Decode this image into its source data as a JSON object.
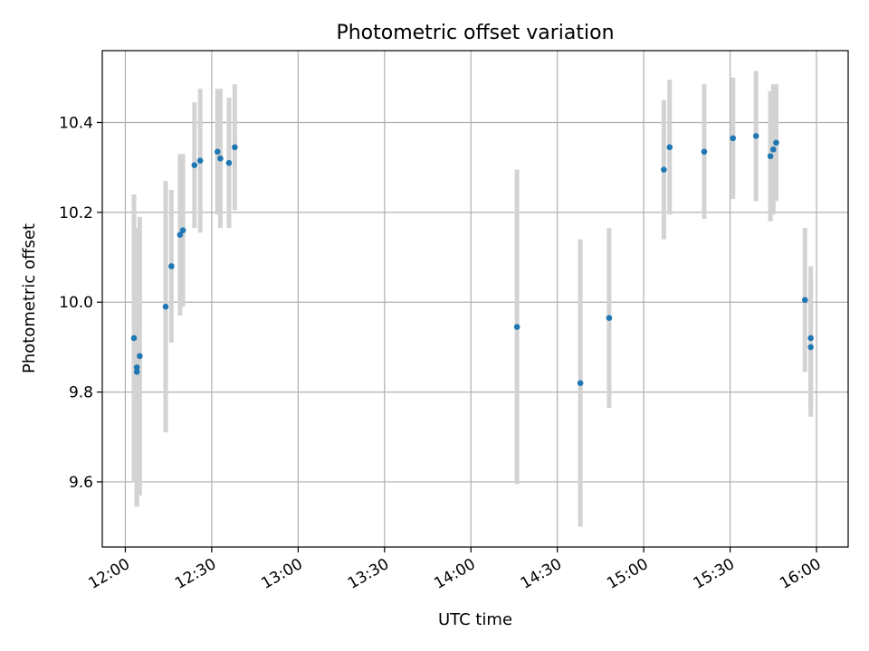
{
  "chart_data": {
    "type": "scatter",
    "title": "Photometric offset variation",
    "xlabel": "UTC time",
    "ylabel": "Photometric offset",
    "x_format": "HH:MM",
    "xlim": [
      "11:52",
      "16:11"
    ],
    "ylim": [
      9.455,
      10.56
    ],
    "grid": true,
    "x_ticks": [
      "12:00",
      "12:30",
      "13:00",
      "13:30",
      "14:00",
      "14:30",
      "15:00",
      "15:30",
      "16:00"
    ],
    "y_ticks": [
      9.6,
      9.8,
      10.0,
      10.2,
      10.4
    ],
    "y_tick_labels": [
      "9.6",
      "9.8",
      "10.0",
      "10.2",
      "10.4"
    ],
    "colors": {
      "point": "#1f77b4",
      "errorbar": "#d3d3d3"
    },
    "points": [
      {
        "x": "12:03",
        "y": 9.92,
        "err": 0.32
      },
      {
        "x": "12:04",
        "y": 9.855,
        "err": 0.31
      },
      {
        "x": "12:04",
        "y": 9.845,
        "err": 0.3
      },
      {
        "x": "12:05",
        "y": 9.88,
        "err": 0.31
      },
      {
        "x": "12:14",
        "y": 9.99,
        "err": 0.28
      },
      {
        "x": "12:16",
        "y": 10.08,
        "err": 0.17
      },
      {
        "x": "12:19",
        "y": 10.15,
        "err": 0.18
      },
      {
        "x": "12:20",
        "y": 10.16,
        "err": 0.17
      },
      {
        "x": "12:24",
        "y": 10.305,
        "err": 0.14
      },
      {
        "x": "12:26",
        "y": 10.315,
        "err": 0.16
      },
      {
        "x": "12:32",
        "y": 10.335,
        "err": 0.14
      },
      {
        "x": "12:33",
        "y": 10.32,
        "err": 0.155
      },
      {
        "x": "12:36",
        "y": 10.31,
        "err": 0.145
      },
      {
        "x": "12:38",
        "y": 10.345,
        "err": 0.14
      },
      {
        "x": "14:16",
        "y": 9.945,
        "err": 0.35
      },
      {
        "x": "14:38",
        "y": 9.82,
        "err": 0.32
      },
      {
        "x": "14:48",
        "y": 9.965,
        "err": 0.2
      },
      {
        "x": "15:07",
        "y": 10.295,
        "err": 0.155
      },
      {
        "x": "15:09",
        "y": 10.345,
        "err": 0.15
      },
      {
        "x": "15:21",
        "y": 10.335,
        "err": 0.15
      },
      {
        "x": "15:31",
        "y": 10.365,
        "err": 0.135
      },
      {
        "x": "15:39",
        "y": 10.37,
        "err": 0.145
      },
      {
        "x": "15:44",
        "y": 10.325,
        "err": 0.145
      },
      {
        "x": "15:45",
        "y": 10.34,
        "err": 0.145
      },
      {
        "x": "15:46",
        "y": 10.355,
        "err": 0.13
      },
      {
        "x": "15:56",
        "y": 10.005,
        "err": 0.16
      },
      {
        "x": "15:58",
        "y": 9.92,
        "err": 0.16
      },
      {
        "x": "15:58",
        "y": 9.9,
        "err": 0.155
      }
    ]
  }
}
